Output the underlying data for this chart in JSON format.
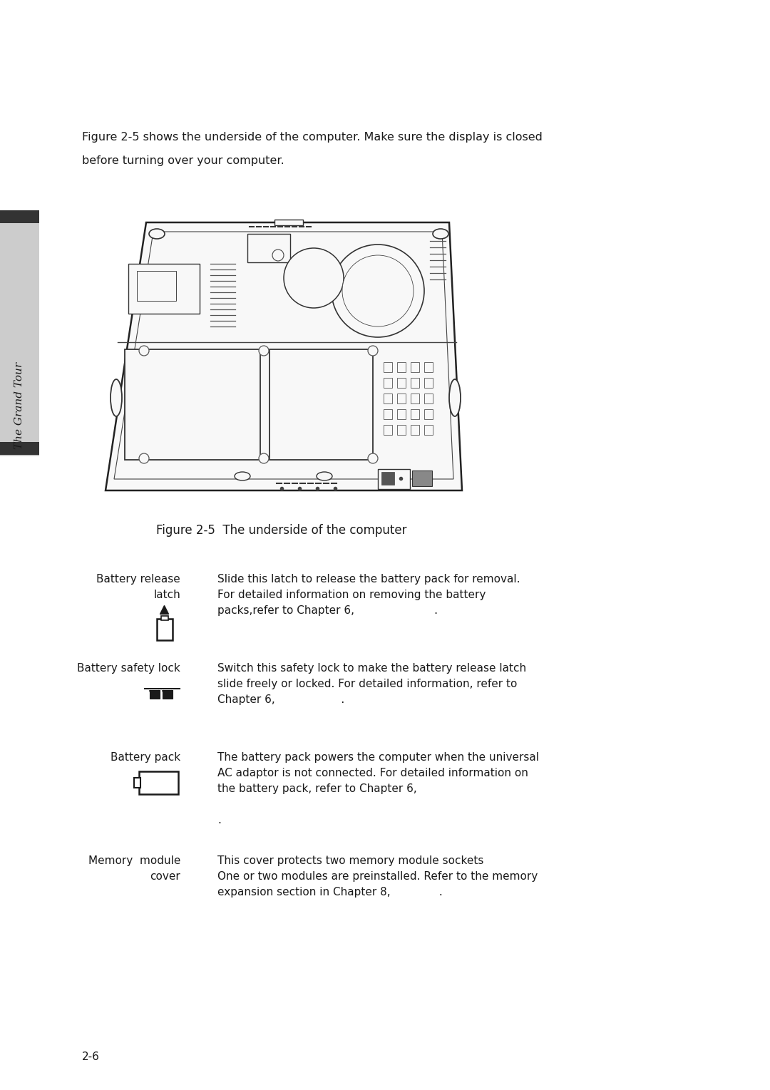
{
  "bg_color": "#ffffff",
  "page_width": 10.8,
  "page_height": 15.29,
  "sidebar_color": "#c8c8c8",
  "sidebar_top_bar_color": "#333333",
  "sidebar_text": "The Grand Tour",
  "intro_text_line1": "Figure 2-5 shows the underside of the computer. Make sure the display is closed",
  "intro_text_line2": "before turning over your computer.",
  "figure_caption": "Figure 2-5  The underside of the computer",
  "item1_label1": "Battery release",
  "item1_label2": "latch",
  "item1_desc1": "Slide this latch to release the battery pack for removal.",
  "item1_desc2": "For detailed information on removing the battery",
  "item1_desc3": "packs,refer to Chapter 6,                       .",
  "item2_label": "Battery safety lock",
  "item2_desc1": "Switch this safety lock to make the battery release latch",
  "item2_desc2": "slide freely or locked. For detailed information, refer to",
  "item2_desc3": "Chapter 6,                   .",
  "item3_label": "Battery pack",
  "item3_desc1": "The battery pack powers the computer when the universal",
  "item3_desc2": "AC adaptor is not connected. For detailed information on",
  "item3_desc3": "the battery pack, refer to Chapter 6,",
  "item3_desc4": ".",
  "item4_label1": "Memory  module",
  "item4_label2": "cover",
  "item4_desc1": "This cover protects two memory module sockets",
  "item4_desc2": "One or two modules are preinstalled. Refer to the memory",
  "item4_desc3": "expansion section in Chapter 8,              .",
  "page_number": "2-6"
}
